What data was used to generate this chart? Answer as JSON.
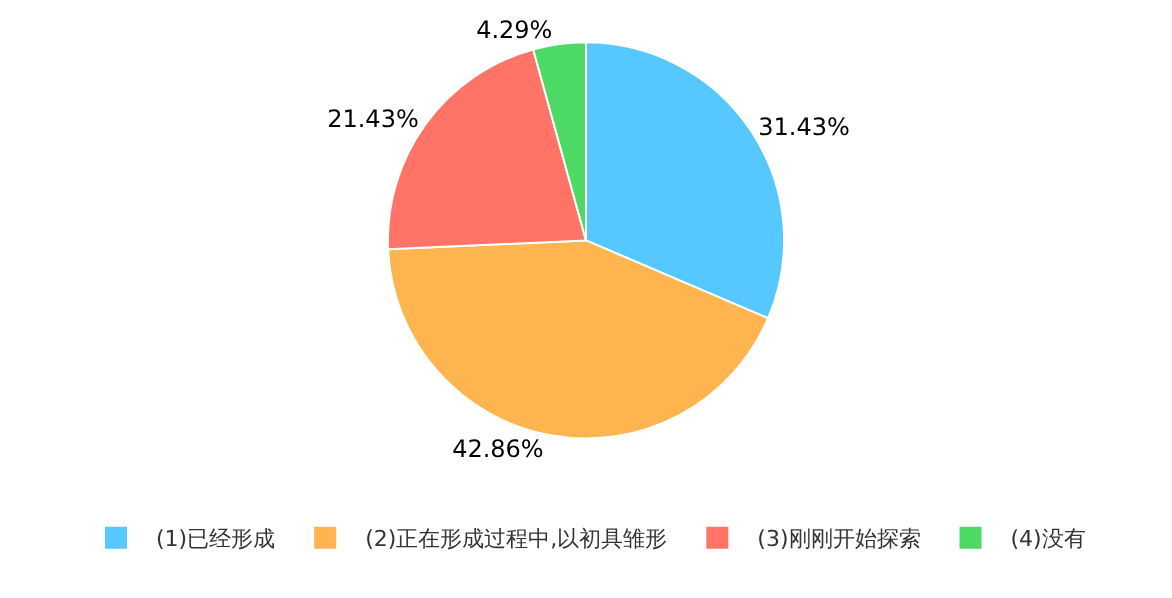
{
  "chart_data": {
    "type": "pie",
    "categories": [
      "(1)已经形成",
      "(2)正在形成过程中,以初具雏形",
      "(3)刚刚开始探索",
      "(4)没有"
    ],
    "values": [
      31.43,
      42.86,
      21.43,
      4.29
    ],
    "value_labels": [
      "31.43%",
      "42.86%",
      "21.43%",
      "4.29%"
    ],
    "colors": [
      "#56c8fd",
      "#ffb54f",
      "#ff7466",
      "#4cd964"
    ],
    "legend": "bottom"
  }
}
